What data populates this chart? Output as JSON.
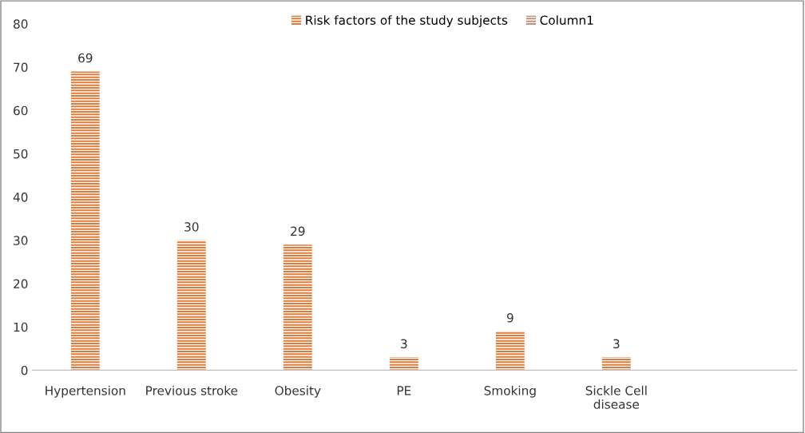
{
  "chart_data": {
    "type": "bar",
    "categories": [
      "Hypertension",
      "Previous stroke",
      "Obesity",
      "PE",
      "Smoking",
      "Sickle Cell\ndisease",
      null
    ],
    "series": [
      {
        "name": "Risk factors of the study subjects",
        "color": "#e07b39",
        "values": [
          69,
          30,
          29,
          3,
          9,
          3,
          null
        ]
      },
      {
        "name": "Column1",
        "color": "#c8907a",
        "values": [
          null,
          null,
          null,
          null,
          null,
          null,
          null
        ]
      }
    ],
    "ylim": [
      0,
      80
    ],
    "yticks": [
      0,
      10,
      20,
      30,
      40,
      50,
      60,
      70,
      80
    ],
    "data_labels": true,
    "grid": false,
    "legend": "top"
  }
}
